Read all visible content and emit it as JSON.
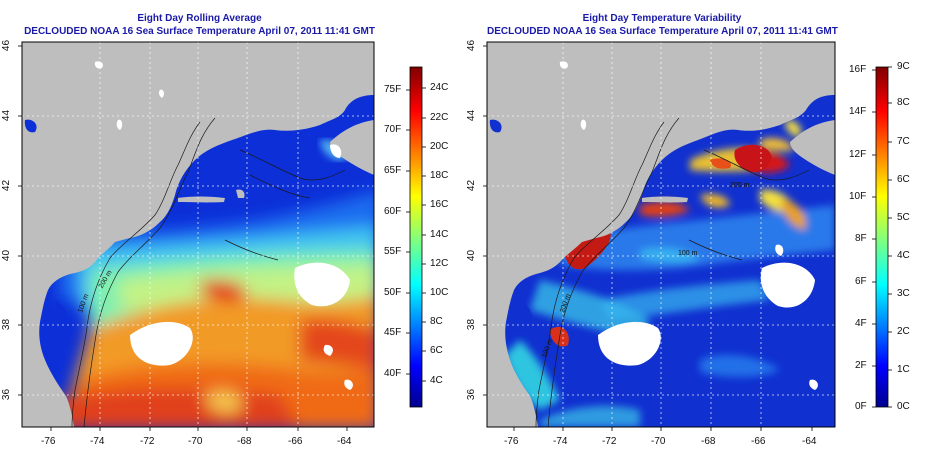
{
  "panels": [
    {
      "title": "Eight Day Rolling Average",
      "subtitle": "DECLOUDED NOAA 16 Sea Surface Temperature April 07, 2011 11:41 GMT",
      "lon_ticks": [
        "-76",
        "-74",
        "-72",
        "-70",
        "-68",
        "-66",
        "-64"
      ],
      "lat_ticks": [
        "46",
        "44",
        "42",
        "40",
        "38",
        "36"
      ],
      "colorbar": {
        "left_labels": [
          "75F",
          "70F",
          "65F",
          "60F",
          "55F",
          "50F",
          "45F",
          "40F"
        ],
        "right_labels": [
          "24C",
          "22C",
          "20C",
          "18C",
          "16C",
          "14C",
          "12C",
          "10C",
          "8C",
          "6C",
          "4C"
        ],
        "colormap": "jet"
      },
      "contour_labels": [
        "100 m",
        "200 m"
      ]
    },
    {
      "title": "Eight Day Temperature Variability",
      "subtitle": "DECLOUDED NOAA 16 Sea Surface Temperature April 07, 2011 11:41 GMT",
      "lon_ticks": [
        "-76",
        "-74",
        "-72",
        "-70",
        "-68",
        "-66",
        "-64"
      ],
      "lat_ticks": [
        "46",
        "44",
        "42",
        "40",
        "38",
        "36"
      ],
      "colorbar": {
        "left_labels": [
          "16F",
          "14F",
          "12F",
          "10F",
          "8F",
          "6F",
          "4F",
          "2F",
          "0F"
        ],
        "right_labels": [
          "9C",
          "8C",
          "7C",
          "6C",
          "5C",
          "4C",
          "3C",
          "2C",
          "1C",
          "0C"
        ],
        "colormap": "jet"
      },
      "contour_labels": [
        "200 m",
        "100 m",
        "200 m",
        "100 m"
      ]
    }
  ],
  "colors": {
    "land": "#bebebe",
    "no_data": "#ffffff",
    "title": "#1a1aa8",
    "grid": "#ffffff",
    "contour": "#222222"
  }
}
